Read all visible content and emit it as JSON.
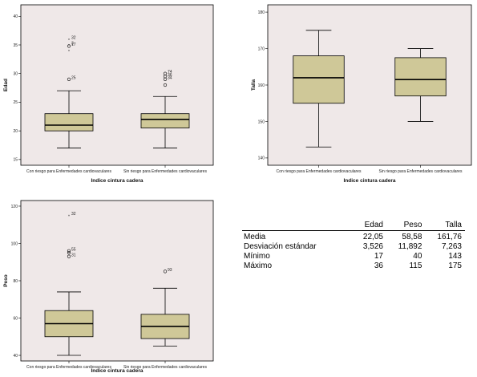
{
  "chart_data": [
    {
      "type": "boxplot",
      "xlabel": "Indice cintura cadera",
      "ylabel": "Edad",
      "ylim": [
        14,
        42
      ],
      "yticks": [
        15,
        20,
        25,
        30,
        35,
        40
      ],
      "categories": [
        "Con riesgo para Enfermedades cardiovaculares",
        "Sin riesgo para Enfermedades cardiovaculares"
      ],
      "boxes": [
        {
          "min": 17,
          "q1": 20,
          "median": 21,
          "q3": 23,
          "max": 27,
          "outliers": [
            {
              "y": 36,
              "label": "32",
              "kind": "star"
            },
            {
              "y": 35,
              "label": "3",
              "kind": "star"
            },
            {
              "y": 34.8,
              "label": "17",
              "kind": "circle"
            },
            {
              "y": 34,
              "label": "",
              "kind": "star"
            },
            {
              "y": 29,
              "label": "25",
              "kind": "circle"
            }
          ]
        },
        {
          "min": 17,
          "q1": 20.5,
          "median": 22,
          "q3": 23,
          "max": 26,
          "outliers": [
            {
              "y": 30,
              "label": "74",
              "kind": "circle"
            },
            {
              "y": 29.5,
              "label": "36",
              "kind": "circle"
            },
            {
              "y": 29,
              "label": "34",
              "kind": "circle"
            },
            {
              "y": 28,
              "label": "",
              "kind": "circle"
            }
          ]
        }
      ]
    },
    {
      "type": "boxplot",
      "xlabel": "Indice cintura cadera",
      "ylabel": "Talla",
      "ylim": [
        138,
        182
      ],
      "yticks": [
        140,
        150,
        160,
        170,
        180
      ],
      "categories": [
        "Con riesgo para Enfermedades cardiovaculares",
        "Sin riesgo para Enfermedades cardiovaculares"
      ],
      "boxes": [
        {
          "min": 143,
          "q1": 155,
          "median": 162,
          "q3": 168,
          "max": 175,
          "outliers": []
        },
        {
          "min": 150,
          "q1": 157,
          "median": 161.5,
          "q3": 167.5,
          "max": 170,
          "outliers": []
        }
      ]
    },
    {
      "type": "boxplot",
      "xlabel": "Indice cintura cadera",
      "ylabel": "Peso",
      "ylim": [
        37,
        123
      ],
      "yticks": [
        40,
        60,
        80,
        100,
        120
      ],
      "categories": [
        "Con riesgo para Enfermedades cardiovaculares",
        "Sin riesgo para Enfermedades cardiovaculares"
      ],
      "boxes": [
        {
          "min": 40,
          "q1": 50,
          "median": 57,
          "q3": 64,
          "max": 74,
          "outliers": [
            {
              "y": 115,
              "label": "32",
              "kind": "star"
            },
            {
              "y": 96,
              "label": "55",
              "kind": "circle"
            },
            {
              "y": 95,
              "label": "",
              "kind": "circle"
            },
            {
              "y": 93,
              "label": "31",
              "kind": "circle"
            }
          ]
        },
        {
          "min": 45,
          "q1": 49,
          "median": 55.5,
          "q3": 62,
          "max": 76,
          "outliers": [
            {
              "y": 85,
              "label": "93",
              "kind": "circle"
            }
          ]
        }
      ]
    },
    {
      "type": "table",
      "columns": [
        "Edad",
        "Peso",
        "Talla"
      ],
      "rows": [
        {
          "label": "Media",
          "values": [
            "22,05",
            "58,58",
            "161,76"
          ]
        },
        {
          "label": "Desviación estándar",
          "values": [
            "3,526",
            "11,892",
            "7,263"
          ]
        },
        {
          "label": "Mínimo",
          "values": [
            "17",
            "40",
            "143"
          ]
        },
        {
          "label": "Máximo",
          "values": [
            "36",
            "115",
            "175"
          ]
        }
      ]
    }
  ],
  "colors": {
    "panel_bg": "#efe8e8",
    "box_fill": "#cfc898",
    "stroke": "#000000"
  }
}
